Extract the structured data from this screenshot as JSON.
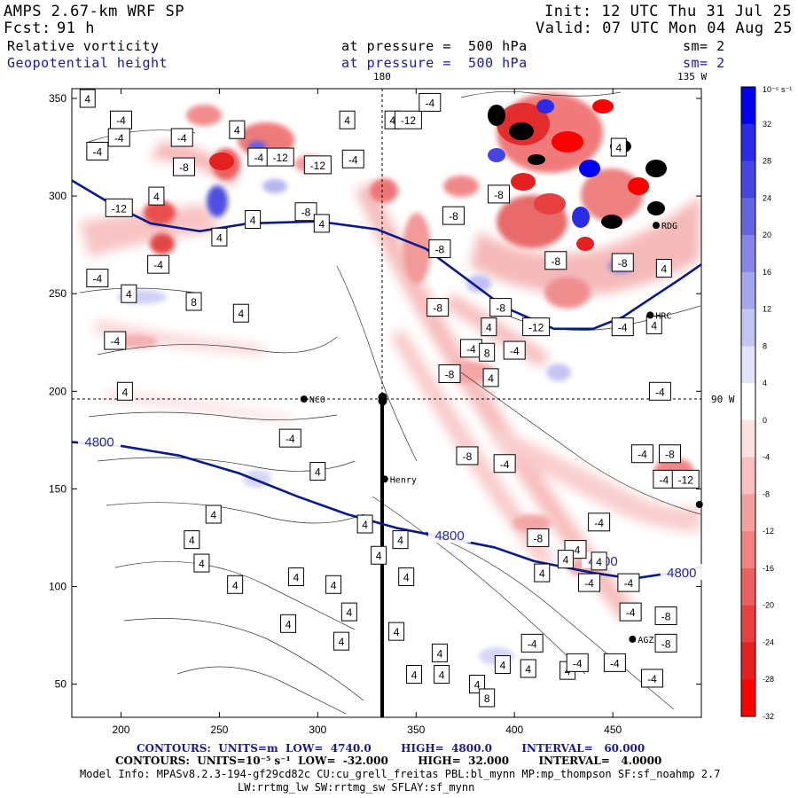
{
  "header": {
    "title_left": "AMPS 2.67-km WRF SP",
    "fcst_label": "Fcst:",
    "fcst_value": "91 h",
    "init": "Init: 12 UTC Thu 31 Jul 25",
    "valid": "Valid: 07 UTC Mon 04 Aug 25",
    "field1_name": "Relative vorticity",
    "field1_level": "at pressure =  500 hPa",
    "field1_sm": "sm= 2",
    "field2_name": "Geopotential height",
    "field2_level": "at pressure =  500 hPa",
    "field2_sm": "sm= 2"
  },
  "lon_labels": {
    "top_180": "180",
    "top_135w": "135 W",
    "right_90w": "90 W"
  },
  "colorbar": {
    "unit": "10⁻⁵ s⁻¹",
    "ticks": [
      "32",
      "28",
      "24",
      "20",
      "16",
      "12",
      "8",
      "4",
      "0",
      "-4",
      "-8",
      "-12",
      "-16",
      "-20",
      "-24",
      "-28",
      "-32"
    ],
    "colors": [
      "#0000ee",
      "#2a2ae8",
      "#4545df",
      "#6565e0",
      "#8585e6",
      "#a5a5ee",
      "#c5c5f4",
      "#e2e2fa",
      "#ffffff",
      "#fde0e0",
      "#f9c0c0",
      "#f5a0a0",
      "#f08282",
      "#ec6060",
      "#e84040",
      "#e42020",
      "#ff0000"
    ]
  },
  "stations": [
    {
      "name": "NCO",
      "x": 293,
      "y": 196
    },
    {
      "name": "Henry",
      "x": 334,
      "y": 155
    },
    {
      "name": "RDG",
      "x": 472,
      "y": 285
    },
    {
      "name": "HRC",
      "x": 469,
      "y": 239
    },
    {
      "name": "AGZ",
      "x": 460,
      "y": 73
    }
  ],
  "footer": {
    "line1": "CONTOURS:  UNITS=m  LOW=  4740.0        HIGH=  4800.0        INTERVAL=   60.000",
    "line2": "CONTOURS:  UNITS=10⁻⁵ s⁻¹  LOW=  -32.000        HIGH=  32.000        INTERVAL=   4.0000",
    "line3": "Model Info: MPASv8.2.3-194-gf29cd82c CU:cu_grell_freitas PBL:bl_mynn MP:mp_thompson SF:sf_noahmp 2.7",
    "line4": "LW:rrtmg_lw SW:rrtmg_sw SFLAY:sf_mynn"
  },
  "chart_data": {
    "type": "heatmap",
    "title": "Relative vorticity / Geopotential height at pressure = 500 hPa",
    "xlim": [
      175,
      495
    ],
    "ylim": [
      33,
      355
    ],
    "x_ticks": [
      200,
      250,
      300,
      350,
      400,
      450
    ],
    "y_ticks": [
      50,
      100,
      150,
      200,
      250,
      300,
      350
    ],
    "grid": false,
    "geopotential_height_contours": [
      {
        "label": "4740",
        "points": [
          [
            175,
            308
          ],
          [
            195,
            296
          ],
          [
            215,
            286
          ],
          [
            240,
            282
          ],
          [
            265,
            286
          ],
          [
            300,
            287
          ],
          [
            330,
            283
          ],
          [
            355,
            273
          ],
          [
            375,
            258
          ],
          [
            395,
            243
          ],
          [
            420,
            232
          ],
          [
            440,
            232
          ],
          [
            455,
            238
          ],
          [
            470,
            248
          ],
          [
            485,
            258
          ],
          [
            495,
            265
          ]
        ]
      },
      {
        "label": "4800",
        "points": [
          [
            175,
            174
          ],
          [
            200,
            172
          ],
          [
            230,
            167
          ],
          [
            260,
            158
          ],
          [
            290,
            146
          ],
          [
            315,
            137
          ],
          [
            340,
            130
          ],
          [
            365,
            125
          ],
          [
            390,
            120
          ],
          [
            410,
            113
          ],
          [
            440,
            107
          ],
          [
            460,
            104
          ],
          [
            480,
            107
          ],
          [
            495,
            110
          ]
        ]
      }
    ],
    "vorticity_labels": [
      {
        "v": "4",
        "x": 183,
        "y": 350
      },
      {
        "v": "-4",
        "x": 200,
        "y": 339
      },
      {
        "v": "-4",
        "x": 199,
        "y": 330
      },
      {
        "v": "-4",
        "x": 231,
        "y": 330
      },
      {
        "v": "4",
        "x": 259,
        "y": 334
      },
      {
        "v": "-4",
        "x": 270,
        "y": 320
      },
      {
        "v": "-8",
        "x": 232,
        "y": 315
      },
      {
        "v": "-4",
        "x": 188,
        "y": 323
      },
      {
        "v": "4",
        "x": 218,
        "y": 300
      },
      {
        "v": "-12",
        "x": 199,
        "y": 294
      },
      {
        "v": "-8",
        "x": 294,
        "y": 292
      },
      {
        "v": "4",
        "x": 302,
        "y": 286
      },
      {
        "v": "-12",
        "x": 281,
        "y": 320
      },
      {
        "v": "-12",
        "x": 300,
        "y": 316
      },
      {
        "v": "-4",
        "x": 318,
        "y": 319
      },
      {
        "v": "4",
        "x": 338,
        "y": 339
      },
      {
        "v": "-12",
        "x": 346,
        "y": 339
      },
      {
        "v": "-4",
        "x": 357,
        "y": 348
      },
      {
        "v": "4",
        "x": 315,
        "y": 339
      },
      {
        "v": "-8",
        "x": 369,
        "y": 290
      },
      {
        "v": "-8",
        "x": 362,
        "y": 273
      },
      {
        "v": "-8",
        "x": 392,
        "y": 301
      },
      {
        "v": "4",
        "x": 250,
        "y": 279
      },
      {
        "v": "4",
        "x": 267,
        "y": 288
      },
      {
        "v": "-4",
        "x": 219,
        "y": 265
      },
      {
        "v": "-4",
        "x": 188,
        "y": 258
      },
      {
        "v": "4",
        "x": 204,
        "y": 250
      },
      {
        "v": "8",
        "x": 237,
        "y": 246
      },
      {
        "v": "4",
        "x": 261,
        "y": 240
      },
      {
        "v": "-4",
        "x": 197,
        "y": 226
      },
      {
        "v": "4",
        "x": 202,
        "y": 200
      },
      {
        "v": "-8",
        "x": 361,
        "y": 243
      },
      {
        "v": "-8",
        "x": 393,
        "y": 243
      },
      {
        "v": "4",
        "x": 387,
        "y": 233
      },
      {
        "v": "-12",
        "x": 411,
        "y": 233
      },
      {
        "v": "-4",
        "x": 378,
        "y": 222
      },
      {
        "v": "8",
        "x": 386,
        "y": 220
      },
      {
        "v": "-4",
        "x": 400,
        "y": 221
      },
      {
        "v": "-8",
        "x": 367,
        "y": 209
      },
      {
        "v": "4",
        "x": 388,
        "y": 207
      },
      {
        "v": "-4",
        "x": 455,
        "y": 233
      },
      {
        "v": "4",
        "x": 471,
        "y": 234
      },
      {
        "v": "4",
        "x": 476,
        "y": 263
      },
      {
        "v": "-8",
        "x": 455,
        "y": 266
      },
      {
        "v": "-8",
        "x": 421,
        "y": 267
      },
      {
        "v": "4",
        "x": 453,
        "y": 325
      },
      {
        "v": "-4",
        "x": 474,
        "y": 200
      },
      {
        "v": "-4",
        "x": 286,
        "y": 176
      },
      {
        "v": "4",
        "x": 300,
        "y": 159
      },
      {
        "v": "4",
        "x": 247,
        "y": 137
      },
      {
        "v": "4",
        "x": 236,
        "y": 124
      },
      {
        "v": "4",
        "x": 241,
        "y": 112
      },
      {
        "v": "4",
        "x": 258,
        "y": 101
      },
      {
        "v": "4",
        "x": 285,
        "y": 81
      },
      {
        "v": "4",
        "x": 324,
        "y": 132
      },
      {
        "v": "4",
        "x": 342,
        "y": 124
      },
      {
        "v": "4",
        "x": 331,
        "y": 116
      },
      {
        "v": "4",
        "x": 345,
        "y": 105
      },
      {
        "v": "4",
        "x": 308,
        "y": 101
      },
      {
        "v": "4",
        "x": 289,
        "y": 105
      },
      {
        "v": "4",
        "x": 316,
        "y": 87
      },
      {
        "v": "4",
        "x": 340,
        "y": 77
      },
      {
        "v": "4",
        "x": 312,
        "y": 72
      },
      {
        "v": "4",
        "x": 362,
        "y": 66
      },
      {
        "v": "4",
        "x": 349,
        "y": 55
      },
      {
        "v": "4",
        "x": 394,
        "y": 60
      },
      {
        "v": "4",
        "x": 381,
        "y": 50
      },
      {
        "v": "4",
        "x": 407,
        "y": 58
      },
      {
        "v": "8",
        "x": 386,
        "y": 43
      },
      {
        "v": "4",
        "x": 427,
        "y": 57
      },
      {
        "v": "4",
        "x": 363,
        "y": 55
      },
      {
        "v": "-8",
        "x": 376,
        "y": 167
      },
      {
        "v": "-4",
        "x": 395,
        "y": 163
      },
      {
        "v": "-8",
        "x": 412,
        "y": 125
      },
      {
        "v": "-4",
        "x": 443,
        "y": 133
      },
      {
        "v": "-4",
        "x": 431,
        "y": 119
      },
      {
        "v": "4",
        "x": 443,
        "y": 113
      },
      {
        "v": "4",
        "x": 414,
        "y": 107
      },
      {
        "v": "-4",
        "x": 438,
        "y": 102
      },
      {
        "v": "-4",
        "x": 458,
        "y": 102
      },
      {
        "v": "-4",
        "x": 459,
        "y": 87
      },
      {
        "v": "-8",
        "x": 477,
        "y": 85
      },
      {
        "v": "-8",
        "x": 477,
        "y": 71
      },
      {
        "v": "-4",
        "x": 432,
        "y": 61
      },
      {
        "v": "-4",
        "x": 451,
        "y": 61
      },
      {
        "v": "-4",
        "x": 409,
        "y": 71
      },
      {
        "v": "-4",
        "x": 470,
        "y": 53
      },
      {
        "v": "-4",
        "x": 465,
        "y": 168
      },
      {
        "v": "-8",
        "x": 479,
        "y": 168
      },
      {
        "v": "-4",
        "x": 476,
        "y": 155
      },
      {
        "v": "-12",
        "x": 487,
        "y": 155
      },
      {
        "v": "4",
        "x": 426,
        "y": 114
      }
    ]
  }
}
